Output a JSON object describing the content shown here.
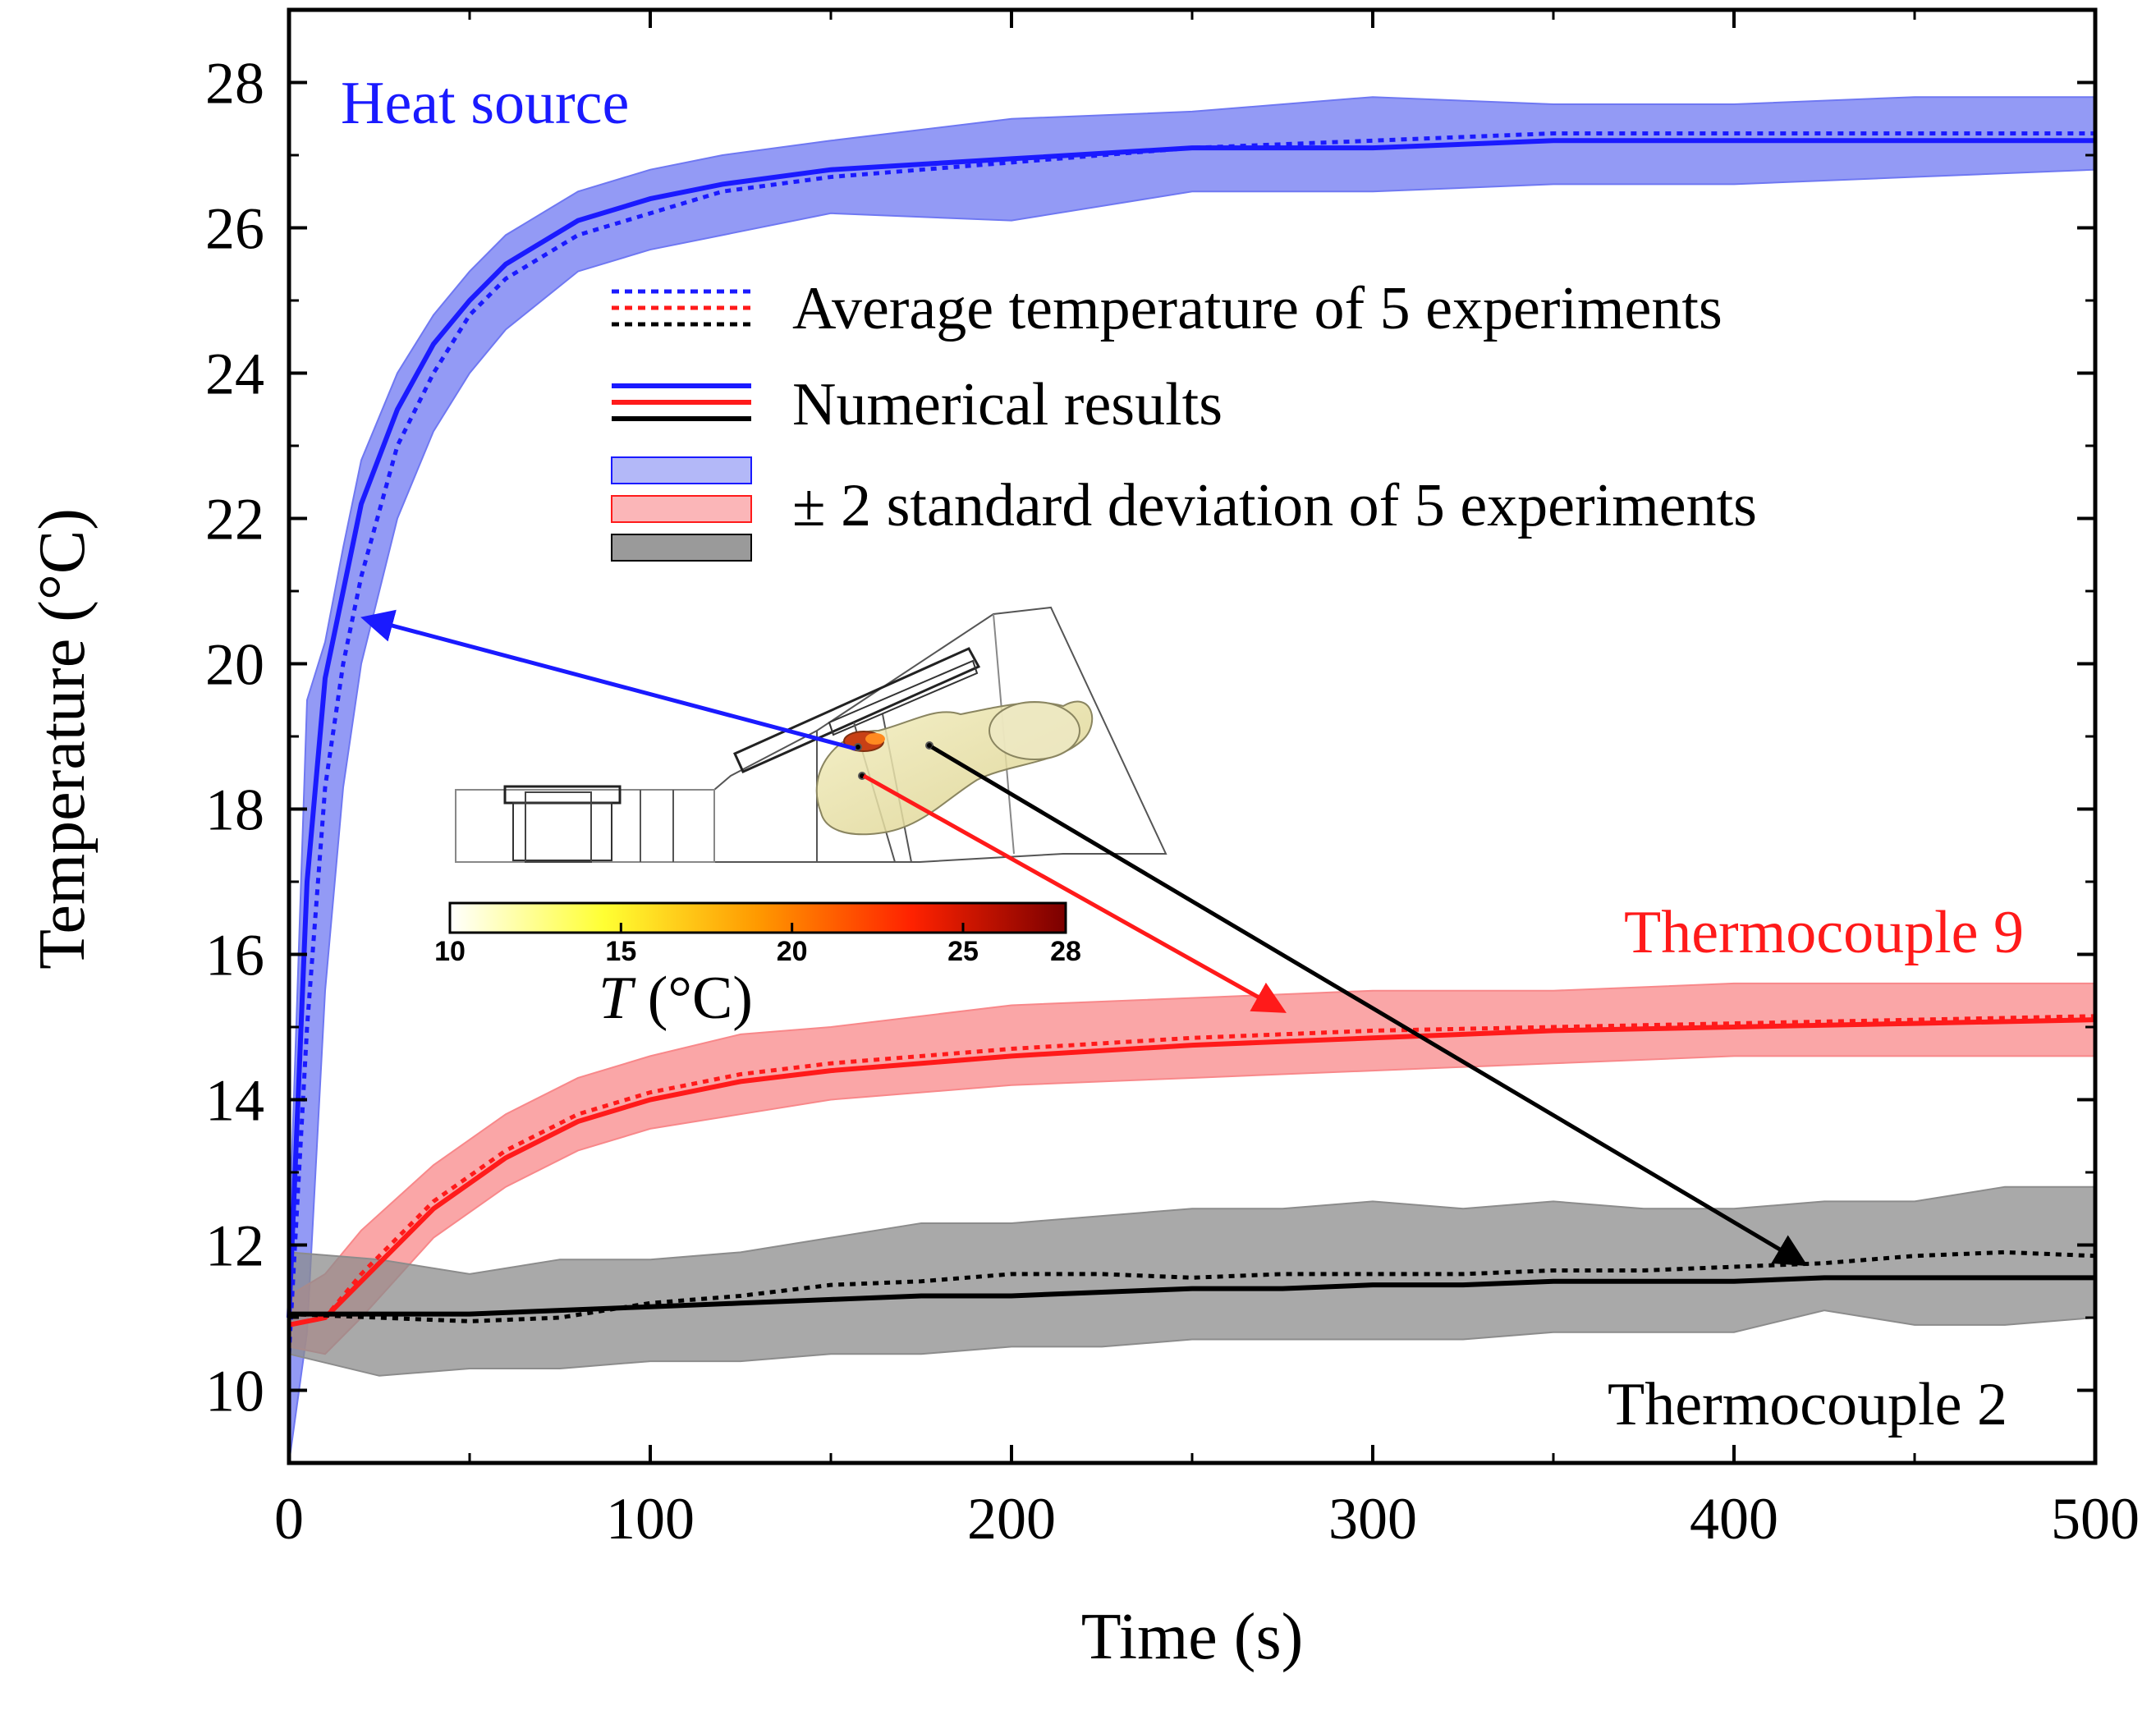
{
  "chart_data": {
    "type": "line",
    "xlabel": "Time (s)",
    "ylabel": "Temperature (°C)",
    "xlim": [
      0,
      500
    ],
    "ylim": [
      9,
      29
    ],
    "xticks": [
      0,
      100,
      200,
      300,
      400,
      500
    ],
    "yticks": [
      10,
      12,
      14,
      16,
      18,
      20,
      22,
      24,
      26,
      28
    ],
    "x_tick_labels": [
      "0",
      "100",
      "200",
      "300",
      "400",
      "500"
    ],
    "y_tick_labels": [
      "10",
      "12",
      "14",
      "16",
      "18",
      "20",
      "22",
      "24",
      "26",
      "28"
    ],
    "grid": false,
    "legend": {
      "position": "top-center",
      "entries": [
        "Average temperature of 5 experiments",
        "Numerical results",
        "± 2 standard deviation of 5 experiments"
      ]
    },
    "annotations": [
      "Heat source",
      "Thermocouple 9",
      "Thermocouple 2"
    ],
    "series": [
      {
        "name": "Heat source",
        "color": "#1a1aff",
        "band_color": "#6f78f2",
        "x": [
          0,
          5,
          10,
          15,
          20,
          30,
          40,
          50,
          60,
          80,
          100,
          120,
          150,
          200,
          250,
          300,
          350,
          400,
          450,
          500
        ],
        "numerical": [
          11.0,
          17.0,
          19.8,
          21.0,
          22.2,
          23.5,
          24.4,
          25.0,
          25.5,
          26.1,
          26.4,
          26.6,
          26.8,
          26.95,
          27.1,
          27.1,
          27.2,
          27.2,
          27.2,
          27.2
        ],
        "average": [
          10.5,
          15.0,
          18.3,
          20.0,
          21.2,
          23.0,
          24.0,
          24.8,
          25.3,
          25.9,
          26.2,
          26.5,
          26.7,
          26.9,
          27.1,
          27.2,
          27.3,
          27.3,
          27.3,
          27.3
        ],
        "upper": [
          12.0,
          19.5,
          20.3,
          21.6,
          22.8,
          24.0,
          24.8,
          25.4,
          25.9,
          26.5,
          26.8,
          27.0,
          27.2,
          27.5,
          27.6,
          27.8,
          27.7,
          27.7,
          27.8,
          27.8
        ],
        "lower": [
          9.0,
          10.8,
          15.5,
          18.3,
          20.0,
          22.0,
          23.2,
          24.0,
          24.6,
          25.4,
          25.7,
          25.9,
          26.2,
          26.1,
          26.5,
          26.5,
          26.6,
          26.6,
          26.7,
          26.8
        ]
      },
      {
        "name": "Thermocouple 9",
        "color": "#ff1a1a",
        "band_color": "#f8888a",
        "x": [
          0,
          10,
          20,
          40,
          60,
          80,
          100,
          125,
          150,
          200,
          250,
          300,
          350,
          400,
          450,
          500
        ],
        "numerical": [
          10.9,
          11.0,
          11.5,
          12.5,
          13.2,
          13.7,
          14.0,
          14.25,
          14.4,
          14.6,
          14.75,
          14.85,
          14.95,
          15.0,
          15.05,
          15.1
        ],
        "average": [
          10.9,
          11.0,
          11.6,
          12.6,
          13.3,
          13.8,
          14.1,
          14.35,
          14.5,
          14.7,
          14.85,
          14.95,
          15.0,
          15.05,
          15.1,
          15.15
        ],
        "upper": [
          11.3,
          11.6,
          12.2,
          13.1,
          13.8,
          14.3,
          14.6,
          14.9,
          15.0,
          15.3,
          15.4,
          15.5,
          15.5,
          15.6,
          15.6,
          15.6
        ],
        "lower": [
          10.6,
          10.5,
          11.0,
          12.1,
          12.8,
          13.3,
          13.6,
          13.8,
          14.0,
          14.2,
          14.3,
          14.4,
          14.5,
          14.6,
          14.6,
          14.6
        ]
      },
      {
        "name": "Thermocouple 2",
        "color": "#000000",
        "band_color": "#8c8c8c",
        "x": [
          0,
          25,
          50,
          75,
          100,
          125,
          150,
          175,
          200,
          225,
          250,
          275,
          300,
          325,
          350,
          375,
          400,
          425,
          450,
          475,
          500
        ],
        "numerical": [
          11.05,
          11.05,
          11.05,
          11.1,
          11.15,
          11.2,
          11.25,
          11.3,
          11.3,
          11.35,
          11.4,
          11.4,
          11.45,
          11.45,
          11.5,
          11.5,
          11.5,
          11.55,
          11.55,
          11.55,
          11.55
        ],
        "average": [
          11.05,
          11.0,
          10.95,
          11.0,
          11.2,
          11.3,
          11.45,
          11.5,
          11.6,
          11.6,
          11.55,
          11.6,
          11.6,
          11.6,
          11.65,
          11.65,
          11.7,
          11.75,
          11.85,
          11.9,
          11.85
        ],
        "upper": [
          11.9,
          11.8,
          11.6,
          11.8,
          11.8,
          11.9,
          12.1,
          12.3,
          12.3,
          12.4,
          12.5,
          12.5,
          12.6,
          12.5,
          12.6,
          12.5,
          12.5,
          12.6,
          12.6,
          12.8,
          12.8
        ],
        "lower": [
          10.5,
          10.2,
          10.3,
          10.3,
          10.4,
          10.4,
          10.5,
          10.5,
          10.6,
          10.6,
          10.7,
          10.7,
          10.7,
          10.7,
          10.8,
          10.8,
          10.8,
          11.1,
          10.9,
          10.9,
          11.0
        ]
      }
    ],
    "inset": {
      "colorbar_title_italic": "T",
      "colorbar_title_rest": " (°C)",
      "colorbar_ticks": [
        "10",
        "15",
        "20",
        "25",
        "28"
      ],
      "colorbar_range": [
        10,
        28
      ],
      "colorbar_colors": [
        "#ffffff",
        "#ffff33",
        "#ff9900",
        "#ff2200",
        "#7a0000"
      ]
    }
  }
}
